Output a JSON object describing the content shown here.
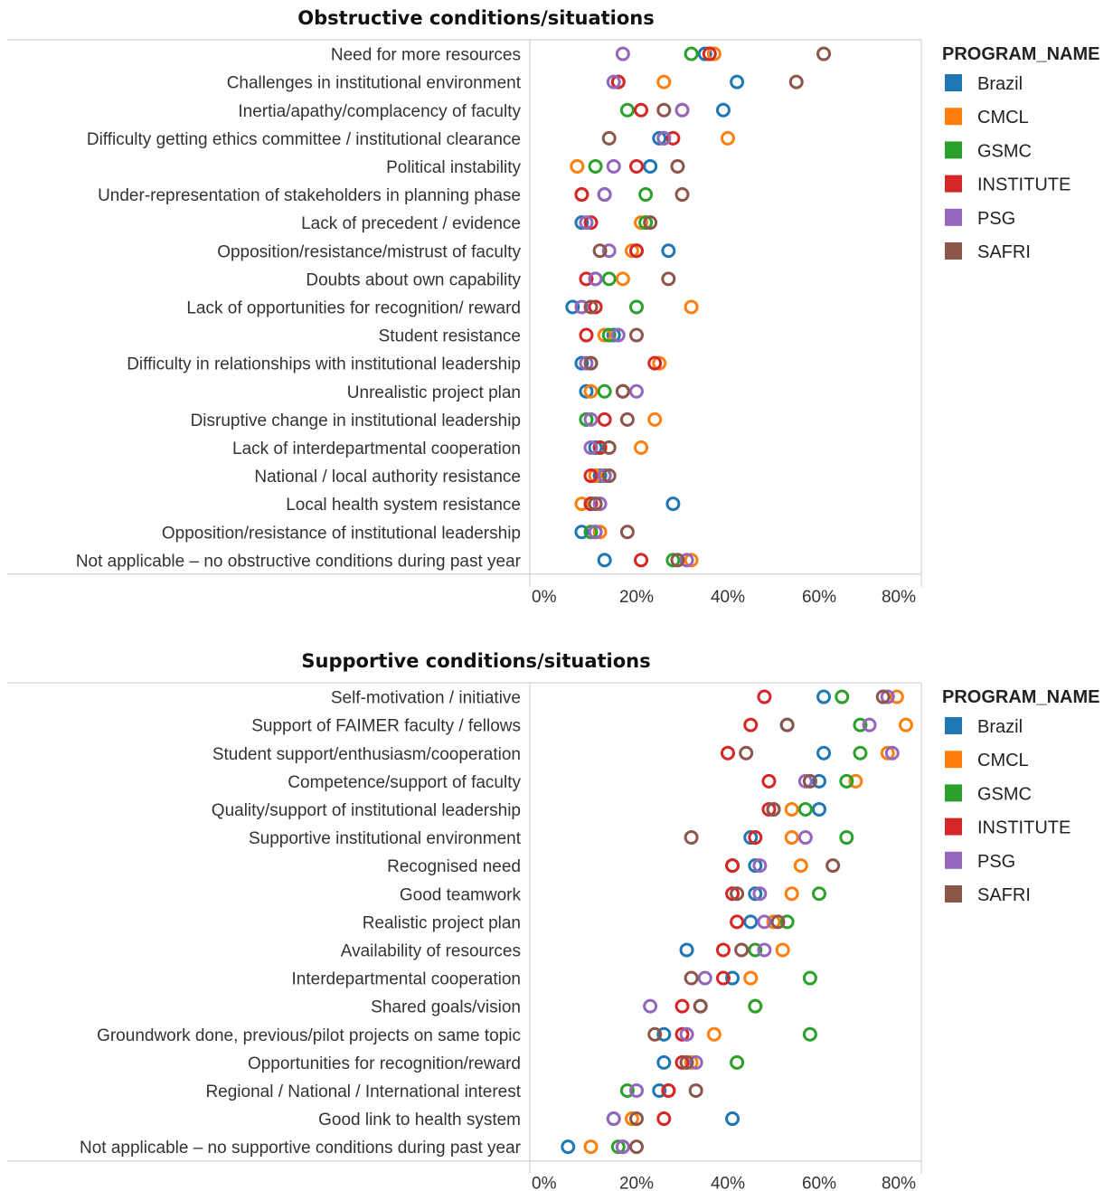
{
  "legend": {
    "title": "PROGRAM_NAME",
    "items": [
      {
        "name": "Brazil",
        "color": "#1f77b4"
      },
      {
        "name": "CMCL",
        "color": "#ff7f0e"
      },
      {
        "name": "GSMC",
        "color": "#2ca02c"
      },
      {
        "name": "INSTITUTE",
        "color": "#d62728"
      },
      {
        "name": "PSG",
        "color": "#9467bd"
      },
      {
        "name": "SAFRI",
        "color": "#8c564b"
      }
    ]
  },
  "chart_data": [
    {
      "type": "scatter",
      "title": "Obstructive conditions/situations",
      "xlim": [
        0,
        80
      ],
      "ticks": [
        "0%",
        "20%",
        "40%",
        "60%",
        "80%"
      ],
      "categories": [
        "Need for more resources",
        "Challenges in institutional environment",
        "Inertia/apathy/complacency of faculty",
        "Difficulty getting ethics committee / institutional clearance",
        "Political instability",
        "Under-representation of stakeholders in planning phase",
        "Lack of precedent / evidence",
        "Opposition/resistance/mistrust of faculty",
        "Doubts about own capability",
        "Lack of opportunities for recognition/ reward",
        "Student resistance",
        "Difficulty in relationships with institutional leadership",
        "Unrealistic project plan",
        "Disruptive change in institutional leadership",
        "Lack of interdepartmental cooperation",
        "National / local authority resistance",
        "Local health system resistance",
        "Opposition/resistance of institutional leadership",
        "Not applicable – no obstructive conditions during past year"
      ],
      "series": [
        {
          "name": "Brazil",
          "values": [
            35,
            42,
            39,
            25,
            23,
            13,
            8,
            27,
            11,
            6,
            15,
            8,
            9,
            9,
            11,
            12,
            28,
            8,
            13
          ]
        },
        {
          "name": "CMCL",
          "values": [
            37,
            26,
            30,
            40,
            7,
            8,
            21,
            19,
            17,
            32,
            13,
            25,
            10,
            24,
            21,
            11,
            8,
            12,
            32
          ]
        },
        {
          "name": "GSMC",
          "values": [
            32,
            16,
            18,
            26,
            11,
            22,
            22,
            20,
            14,
            20,
            14,
            10,
            13,
            9,
            12,
            13,
            10,
            10,
            28
          ]
        },
        {
          "name": "INSTITUTE",
          "values": [
            36,
            16,
            21,
            28,
            20,
            8,
            10,
            20,
            9,
            11,
            9,
            24,
            17,
            13,
            12,
            10,
            10,
            11,
            21
          ]
        },
        {
          "name": "PSG",
          "values": [
            17,
            15,
            30,
            26,
            15,
            13,
            9,
            14,
            11,
            8,
            16,
            9,
            20,
            10,
            10,
            13,
            12,
            11,
            31
          ]
        },
        {
          "name": "SAFRI",
          "values": [
            61,
            55,
            26,
            14,
            29,
            30,
            23,
            12,
            27,
            10,
            20,
            10,
            17,
            18,
            14,
            14,
            11,
            18,
            29
          ]
        }
      ]
    },
    {
      "type": "scatter",
      "title": "Supportive conditions/situations",
      "xlim": [
        0,
        80
      ],
      "ticks": [
        "0%",
        "20%",
        "40%",
        "60%",
        "80%"
      ],
      "categories": [
        "Self-motivation / initiative",
        "Support of FAIMER faculty / fellows",
        "Student support/enthusiasm/cooperation",
        "Competence/support of faculty",
        "Quality/support of institutional leadership",
        "Supportive institutional environment",
        "Recognised need",
        "Good teamwork",
        "Realistic project plan",
        "Availability of resources",
        "Interdepartmental cooperation",
        "Shared goals/vision",
        "Groundwork done, previous/pilot projects on same topic",
        "Opportunities for recognition/reward",
        "Regional / National / International interest",
        "Good link to health system",
        "Not applicable – no supportive conditions during past year"
      ],
      "series": [
        {
          "name": "Brazil",
          "values": [
            61,
            53,
            61,
            60,
            60,
            45,
            46,
            46,
            45,
            31,
            41,
            34,
            26,
            26,
            25,
            41,
            5
          ]
        },
        {
          "name": "CMCL",
          "values": [
            77,
            79,
            75,
            68,
            54,
            54,
            56,
            54,
            50,
            52,
            45,
            46,
            37,
            32,
            27,
            19,
            10
          ]
        },
        {
          "name": "GSMC",
          "values": [
            65,
            69,
            69,
            66,
            57,
            66,
            41,
            60,
            53,
            46,
            58,
            46,
            58,
            42,
            18,
            15,
            16
          ]
        },
        {
          "name": "INSTITUTE",
          "values": [
            48,
            45,
            40,
            49,
            49,
            46,
            41,
            41,
            42,
            39,
            39,
            30,
            30,
            30,
            27,
            26,
            17
          ]
        },
        {
          "name": "PSG",
          "values": [
            75,
            71,
            76,
            57,
            50,
            57,
            47,
            47,
            48,
            48,
            35,
            23,
            31,
            33,
            20,
            15,
            17
          ]
        },
        {
          "name": "SAFRI",
          "values": [
            74,
            53,
            44,
            58,
            50,
            32,
            63,
            42,
            51,
            43,
            32,
            34,
            24,
            31,
            33,
            20,
            20
          ]
        }
      ]
    }
  ]
}
